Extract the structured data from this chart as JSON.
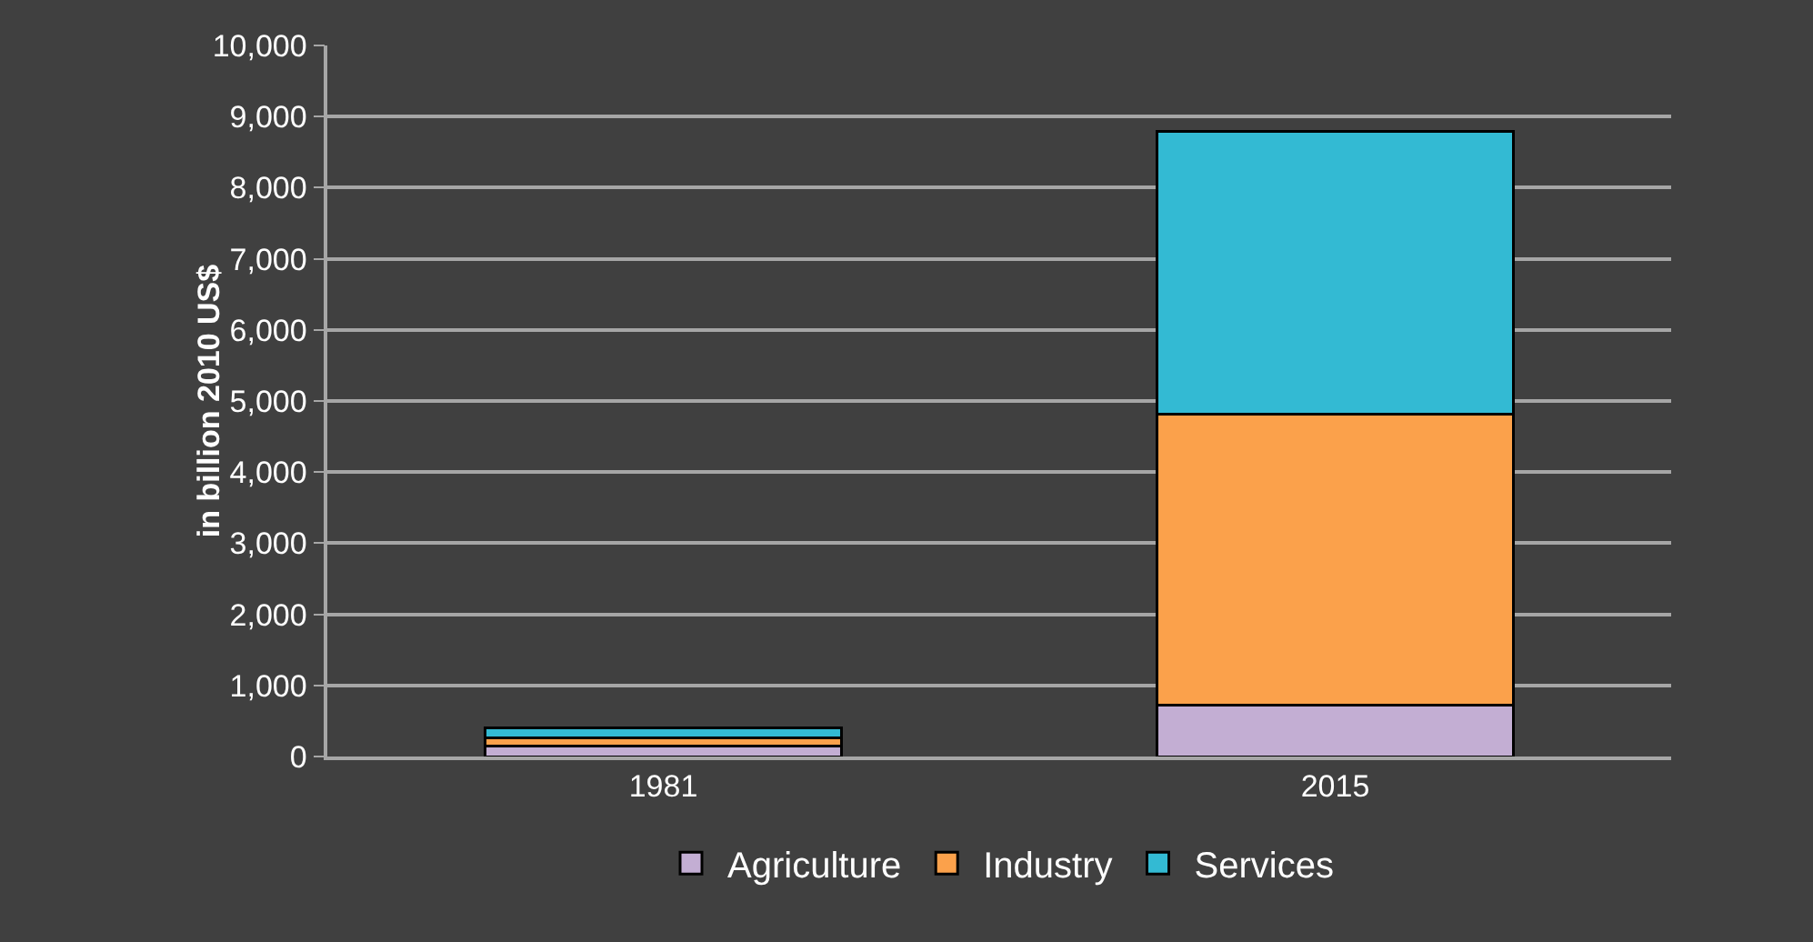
{
  "chart_data": {
    "type": "bar",
    "stacked": true,
    "categories": [
      "1981",
      "2015"
    ],
    "ylabel": "in billion 2010 US$",
    "series": [
      {
        "name": "Agriculture",
        "color": "#c3aed3",
        "values": [
          150,
          720
        ]
      },
      {
        "name": "Industry",
        "color": "#fba14b",
        "values": [
          110,
          4100
        ]
      },
      {
        "name": "Services",
        "color": "#33bad3",
        "values": [
          140,
          3970
        ]
      }
    ],
    "ylim": [
      0,
      10000
    ],
    "yticks": [
      {
        "value": 0,
        "label": "0"
      },
      {
        "value": 1000,
        "label": "1,000"
      },
      {
        "value": 2000,
        "label": "2,000"
      },
      {
        "value": 3000,
        "label": "3,000"
      },
      {
        "value": 4000,
        "label": "4,000"
      },
      {
        "value": 5000,
        "label": "5,000"
      },
      {
        "value": 6000,
        "label": "6,000"
      },
      {
        "value": 7000,
        "label": "7,000"
      },
      {
        "value": 8000,
        "label": "8,000"
      },
      {
        "value": 9000,
        "label": "9,000"
      },
      {
        "value": 10000,
        "label": "10,000"
      }
    ],
    "grid": "y",
    "legend": "bottom"
  }
}
